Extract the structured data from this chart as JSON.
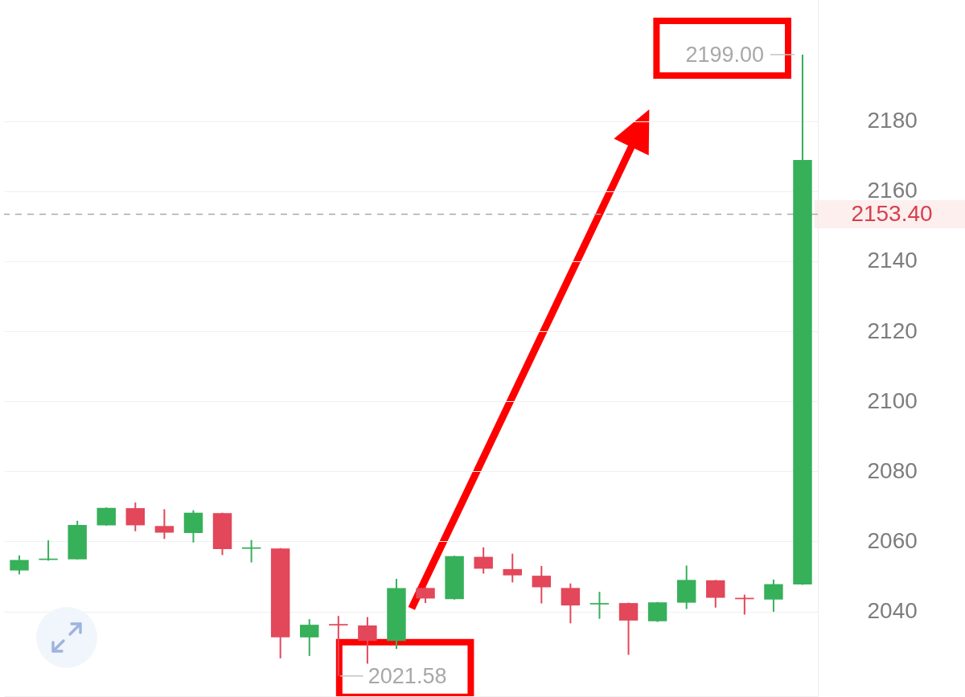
{
  "chart_data": {
    "type": "candlestick",
    "categories": [
      null,
      null,
      null,
      null,
      null,
      null,
      null,
      null,
      null,
      null,
      null,
      null,
      null,
      null,
      null,
      null,
      null,
      null,
      null,
      null,
      null,
      null,
      null,
      null,
      null,
      null,
      null,
      null
    ],
    "ohlc": [
      [
        2051.7,
        2056.0,
        2050.6,
        2054.7
      ],
      [
        2054.7,
        2060.3,
        2054.5,
        2055.1
      ],
      [
        2054.9,
        2065.9,
        2054.8,
        2064.7
      ],
      [
        2064.6,
        2069.7,
        2064.5,
        2069.6
      ],
      [
        2069.5,
        2071.1,
        2062.9,
        2064.6
      ],
      [
        2064.4,
        2069.2,
        2060.7,
        2062.5
      ],
      [
        2062.4,
        2068.9,
        2059.7,
        2068.2
      ],
      [
        2068.1,
        2068.2,
        2056.1,
        2057.8
      ],
      [
        2057.9,
        2060.4,
        2054.0,
        2058.3
      ],
      [
        2058.0,
        2058.1,
        2026.6,
        2032.6
      ],
      [
        2032.6,
        2037.8,
        2027.3,
        2036.2
      ],
      [
        2036.4,
        2038.7,
        2021.58,
        2036.0
      ],
      [
        2036.0,
        2038.4,
        2025.1,
        2031.6
      ],
      [
        2031.6,
        2049.3,
        2029.3,
        2046.7
      ],
      [
        2046.7,
        2047.0,
        2042.4,
        2043.7
      ],
      [
        2043.5,
        2055.9,
        2043.4,
        2055.8
      ],
      [
        2055.6,
        2058.3,
        2050.8,
        2052.2
      ],
      [
        2052.1,
        2056.5,
        2048.3,
        2050.3
      ],
      [
        2050.2,
        2053.0,
        2042.3,
        2046.9
      ],
      [
        2046.7,
        2048.0,
        2036.6,
        2041.7
      ],
      [
        2042.0,
        2045.6,
        2037.9,
        2042.4
      ],
      [
        2042.4,
        2042.5,
        2027.6,
        2037.4
      ],
      [
        2037.2,
        2042.7,
        2037.0,
        2042.6
      ],
      [
        2042.5,
        2053.1,
        2040.7,
        2049.0
      ],
      [
        2048.9,
        2049.0,
        2041.1,
        2043.9
      ],
      [
        2043.9,
        2044.8,
        2039.1,
        2043.5
      ],
      [
        2043.4,
        2049.1,
        2039.9,
        2047.8
      ],
      [
        2047.7,
        2199.0,
        2047.6,
        2168.9
      ]
    ],
    "colors": [
      "#37b05a",
      "#37b05a",
      "#37b05a",
      "#37b05a",
      "#e3475a",
      "#e3475a",
      "#37b05a",
      "#e3475a",
      "#37b05a",
      "#e3475a",
      "#37b05a",
      "#e3475a",
      "#e3475a",
      "#37b05a",
      "#e3475a",
      "#37b05a",
      "#e3475a",
      "#e3475a",
      "#e3475a",
      "#e3475a",
      "#37b05a",
      "#e3475a",
      "#37b05a",
      "#37b05a",
      "#e3475a",
      "#e3475a",
      "#37b05a",
      "#37b05a"
    ],
    "ylim": [
      2015.8,
      2214.6
    ],
    "yticks": [
      2040,
      2060,
      2080,
      2100,
      2120,
      2140,
      2160,
      2180
    ],
    "grid": "y",
    "tick_labels": "y",
    "ref_lines": [
      {
        "axis": "y",
        "value": 2153.4,
        "label": "2153.40",
        "color": "#aaaaaa",
        "line_style": "dashed"
      }
    ],
    "annotations": [
      "2199.00",
      "2021.58"
    ]
  }
}
